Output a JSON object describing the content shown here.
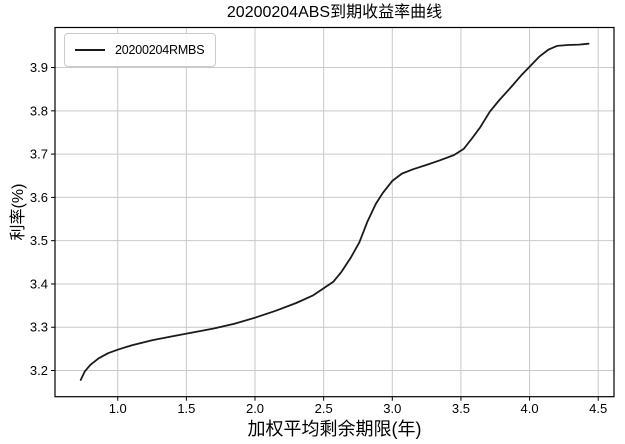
{
  "page": {
    "background": "#ffffff"
  },
  "chart_data": {
    "type": "line",
    "title": "20200204ABS到期收益率曲线",
    "xlabel": "加权平均剩余期限(年)",
    "ylabel": "利率(%)",
    "xlim": [
      0.543,
      4.615
    ],
    "ylim": [
      3.1395,
      3.9925
    ],
    "xtick_values": [
      1.0,
      1.5,
      2.0,
      2.5,
      3.0,
      3.5,
      4.0,
      4.5
    ],
    "xtick_labels": [
      "1.0",
      "1.5",
      "2.0",
      "2.5",
      "3.0",
      "3.5",
      "4.0",
      "4.5"
    ],
    "ytick_values": [
      3.2,
      3.3,
      3.4,
      3.5,
      3.6,
      3.7,
      3.8,
      3.9
    ],
    "ytick_labels": [
      "3.2",
      "3.3",
      "3.4",
      "3.5",
      "3.6",
      "3.7",
      "3.8",
      "3.9"
    ],
    "grid": true,
    "grid_color": "#c9c9c9",
    "axis_color": "#000000",
    "background_color": "#ffffff",
    "legend": {
      "position": "upper-left",
      "entries": [
        {
          "label": "20200204RMBS",
          "color": "#1a1a1a"
        }
      ]
    },
    "series": [
      {
        "name": "20200204RMBS",
        "color": "#1a1a1a",
        "width": 1.8,
        "points": [
          [
            0.73,
            3.178
          ],
          [
            0.76,
            3.198
          ],
          [
            0.8,
            3.213
          ],
          [
            0.86,
            3.228
          ],
          [
            0.93,
            3.24
          ],
          [
            1.0,
            3.248
          ],
          [
            1.1,
            3.258
          ],
          [
            1.25,
            3.27
          ],
          [
            1.4,
            3.279
          ],
          [
            1.55,
            3.288
          ],
          [
            1.7,
            3.297
          ],
          [
            1.85,
            3.308
          ],
          [
            2.0,
            3.322
          ],
          [
            2.15,
            3.338
          ],
          [
            2.3,
            3.356
          ],
          [
            2.42,
            3.373
          ],
          [
            2.5,
            3.39
          ],
          [
            2.57,
            3.405
          ],
          [
            2.63,
            3.428
          ],
          [
            2.7,
            3.462
          ],
          [
            2.76,
            3.496
          ],
          [
            2.82,
            3.545
          ],
          [
            2.88,
            3.585
          ],
          [
            2.93,
            3.61
          ],
          [
            3.0,
            3.638
          ],
          [
            3.07,
            3.655
          ],
          [
            3.15,
            3.665
          ],
          [
            3.25,
            3.675
          ],
          [
            3.35,
            3.686
          ],
          [
            3.45,
            3.698
          ],
          [
            3.52,
            3.712
          ],
          [
            3.58,
            3.736
          ],
          [
            3.64,
            3.762
          ],
          [
            3.71,
            3.798
          ],
          [
            3.78,
            3.825
          ],
          [
            3.86,
            3.853
          ],
          [
            3.94,
            3.882
          ],
          [
            4.0,
            3.902
          ],
          [
            4.07,
            3.925
          ],
          [
            4.14,
            3.942
          ],
          [
            4.2,
            3.95
          ],
          [
            4.28,
            3.952
          ],
          [
            4.36,
            3.953
          ],
          [
            4.43,
            3.955
          ]
        ]
      }
    ]
  }
}
